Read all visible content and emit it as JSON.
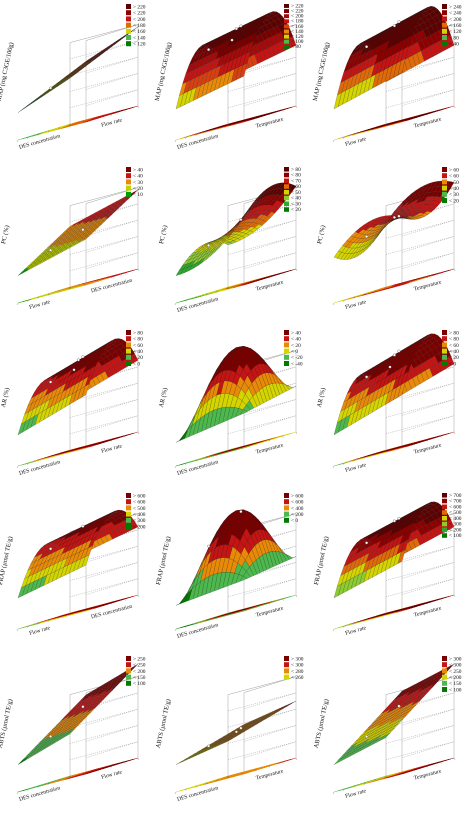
{
  "chart_data": [
    {
      "type": "surface3d",
      "ylabel": "MAP (mg C3GE/100g)",
      "x_label": "DES concentration",
      "z_label": "Flow rate",
      "legend": [
        "> 220",
        "< 220",
        "< 200",
        "< 180",
        "< 160",
        "< 140",
        "< 120"
      ],
      "colors": [
        "#5c0000",
        "#8e0000",
        "#c41414",
        "#e06a08",
        "#d4d400",
        "#4db84d",
        "#007a00"
      ],
      "surface": {
        "kind": "linear",
        "a": 0.25,
        "b": 0.45,
        "c": 0.0
      },
      "point_count": 1
    },
    {
      "type": "surface3d",
      "ylabel": "MAP (mg C3GE/100g)",
      "x_label": "DES concentration",
      "z_label": "Temperature",
      "legend": [
        "> 220",
        "< 220",
        "< 200",
        "< 180",
        "< 160",
        "< 140",
        "< 120",
        "< 100",
        "< 80"
      ],
      "colors": [
        "#5c0000",
        "#7a0000",
        "#a40a0a",
        "#c41414",
        "#d84010",
        "#e88a08",
        "#d4d400",
        "#4db84d",
        "#007a00"
      ],
      "surface": {
        "kind": "ridge",
        "a": 0.2,
        "b": 0.2,
        "c": 0.65
      },
      "point_count": 4
    },
    {
      "type": "surface3d",
      "ylabel": "MAP (mg C3GE/100g)",
      "x_label": "Flow rate",
      "z_label": "Temperature",
      "legend": [
        "> 240",
        "< 240",
        "< 200",
        "< 160",
        "< 120",
        "< 80",
        "< 40"
      ],
      "colors": [
        "#5c0000",
        "#8e0000",
        "#c41414",
        "#e06a08",
        "#d4d400",
        "#4db84d",
        "#007a00"
      ],
      "surface": {
        "kind": "ridge",
        "a": 0.15,
        "b": 0.25,
        "c": 0.7
      },
      "point_count": 3
    },
    {
      "type": "surface3d",
      "ylabel": "PC (%)",
      "x_label": "Flow rate",
      "z_label": "DES concentration",
      "legend": [
        "> 40",
        "< 40",
        "< 30",
        "< 20",
        "< 10"
      ],
      "colors": [
        "#7a0000",
        "#c41414",
        "#e88a08",
        "#bfd400",
        "#00a000"
      ],
      "surface": {
        "kind": "linear",
        "a": 0.45,
        "b": 0.25,
        "c": 0.0
      },
      "point_count": 2
    },
    {
      "type": "surface3d",
      "ylabel": "PC (%)",
      "x_label": "DES concentration",
      "z_label": "Temperature",
      "legend": [
        "> 80",
        "< 80",
        "< 70",
        "< 60",
        "< 50",
        "< 40",
        "< 30",
        "< 20"
      ],
      "colors": [
        "#5c0000",
        "#8e0000",
        "#c41414",
        "#e06a08",
        "#d4d400",
        "#8ccc30",
        "#2ea82e",
        "#007a00"
      ],
      "surface": {
        "kind": "curved",
        "a": 0.2,
        "b": 0.55,
        "c": 0.2
      },
      "point_count": 2
    },
    {
      "type": "surface3d",
      "ylabel": "PC (%)",
      "x_label": "Flow rate",
      "z_label": "Temperature",
      "legend": [
        "> 60",
        "< 60",
        "< 50",
        "< 40",
        "< 30",
        "< 20"
      ],
      "colors": [
        "#7a0000",
        "#c41414",
        "#e88a08",
        "#d4d400",
        "#4db84d",
        "#007a00"
      ],
      "surface": {
        "kind": "saddle",
        "a": 0.25,
        "b": 0.3,
        "c": 0.4
      },
      "point_count": 3
    },
    {
      "type": "surface3d",
      "ylabel": "AR (%)",
      "x_label": "DES concentration",
      "z_label": "Flow rate",
      "legend": [
        "> 80",
        "< 80",
        "< 60",
        "< 40",
        "< 20",
        "< 0"
      ],
      "colors": [
        "#7a0000",
        "#c41414",
        "#e88a08",
        "#d4d400",
        "#4db84d",
        "#007a00"
      ],
      "surface": {
        "kind": "ridge",
        "a": 0.25,
        "b": 0.3,
        "c": 0.5
      },
      "point_count": 4
    },
    {
      "type": "surface3d",
      "ylabel": "AR (%)",
      "x_label": "DES concentration",
      "z_label": "Temperature",
      "legend": [
        "> 40",
        "< 40",
        "< 20",
        "< 0",
        "< -20",
        "< -40"
      ],
      "colors": [
        "#7a0000",
        "#c41414",
        "#e88a08",
        "#d4d400",
        "#4db84d",
        "#007a00"
      ],
      "surface": {
        "kind": "dome",
        "a": 0.15,
        "b": 0.15,
        "c": 0.9
      },
      "point_count": 0
    },
    {
      "type": "surface3d",
      "ylabel": "AR (%)",
      "x_label": "Flow rate",
      "z_label": "Temperature",
      "legend": [
        "> 80",
        "< 80",
        "< 60",
        "< 40",
        "< 20",
        "< 0"
      ],
      "colors": [
        "#7a0000",
        "#c41414",
        "#e88a08",
        "#d4d400",
        "#4db84d",
        "#007a00"
      ],
      "surface": {
        "kind": "ridge",
        "a": 0.2,
        "b": 0.3,
        "c": 0.6
      },
      "point_count": 4
    },
    {
      "type": "surface3d",
      "ylabel": "FRAP (µmol TE/g)",
      "x_label": "Flow rate",
      "z_label": "DES concentration",
      "legend": [
        "> 600",
        "< 600",
        "< 500",
        "< 400",
        "< 300",
        "< 200"
      ],
      "colors": [
        "#7a0000",
        "#c41414",
        "#e88a08",
        "#d4d400",
        "#4db84d",
        "#007a00"
      ],
      "surface": {
        "kind": "ridge",
        "a": 0.3,
        "b": 0.2,
        "c": 0.45
      },
      "point_count": 2
    },
    {
      "type": "surface3d",
      "ylabel": "FRAP (µmol TE/g)",
      "x_label": "DES concentration",
      "z_label": "Temperature",
      "legend": [
        "> 600",
        "< 600",
        "< 400",
        "< 200",
        "< 0"
      ],
      "colors": [
        "#7a0000",
        "#c41414",
        "#e88a08",
        "#4db84d",
        "#007a00"
      ],
      "surface": {
        "kind": "dome",
        "a": 0.1,
        "b": 0.1,
        "c": 0.95
      },
      "point_count": 2
    },
    {
      "type": "surface3d",
      "ylabel": "FRAP (µmol TE/g)",
      "x_label": "Flow rate",
      "z_label": "Temperature",
      "legend": [
        "> 700",
        "< 700",
        "< 600",
        "< 500",
        "< 400",
        "< 300",
        "< 200",
        "< 100"
      ],
      "colors": [
        "#5c0000",
        "#8e0000",
        "#c41414",
        "#e06a08",
        "#d4d400",
        "#8ccc30",
        "#2ea82e",
        "#007a00"
      ],
      "surface": {
        "kind": "ridge",
        "a": 0.25,
        "b": 0.25,
        "c": 0.55
      },
      "point_count": 3
    },
    {
      "type": "surface3d",
      "ylabel": "ABTS (µmol TE/g)",
      "x_label": "DES concentration",
      "z_label": "Flow rate",
      "legend": [
        "> 250",
        "< 250",
        "< 200",
        "< 150",
        "< 100"
      ],
      "colors": [
        "#7a0000",
        "#c41414",
        "#e88a08",
        "#4db84d",
        "#007a00"
      ],
      "surface": {
        "kind": "linear",
        "a": 0.2,
        "b": 0.7,
        "c": 0.0
      },
      "point_count": 2
    },
    {
      "type": "surface3d",
      "ylabel": "ABTS (µmol TE/g)",
      "x_label": "DES concentration",
      "z_label": "Temperature",
      "legend": [
        "> 300",
        "< 300",
        "< 280",
        "< 260"
      ],
      "colors": [
        "#7a0000",
        "#c41414",
        "#e88a08",
        "#d4d400"
      ],
      "surface": {
        "kind": "linear",
        "a": 0.1,
        "b": 0.3,
        "c": 0.0
      },
      "point_count": 3
    },
    {
      "type": "surface3d",
      "ylabel": "ABTS (µmol TE/g)",
      "x_label": "Flow rate",
      "z_label": "Temperature",
      "legend": [
        "> 300",
        "< 300",
        "< 250",
        "< 200",
        "< 150",
        "< 100"
      ],
      "colors": [
        "#7a0000",
        "#c41414",
        "#e88a08",
        "#d4d400",
        "#4db84d",
        "#007a00"
      ],
      "surface": {
        "kind": "linear",
        "a": 0.15,
        "b": 0.75,
        "c": 0.0
      },
      "point_count": 2
    }
  ]
}
